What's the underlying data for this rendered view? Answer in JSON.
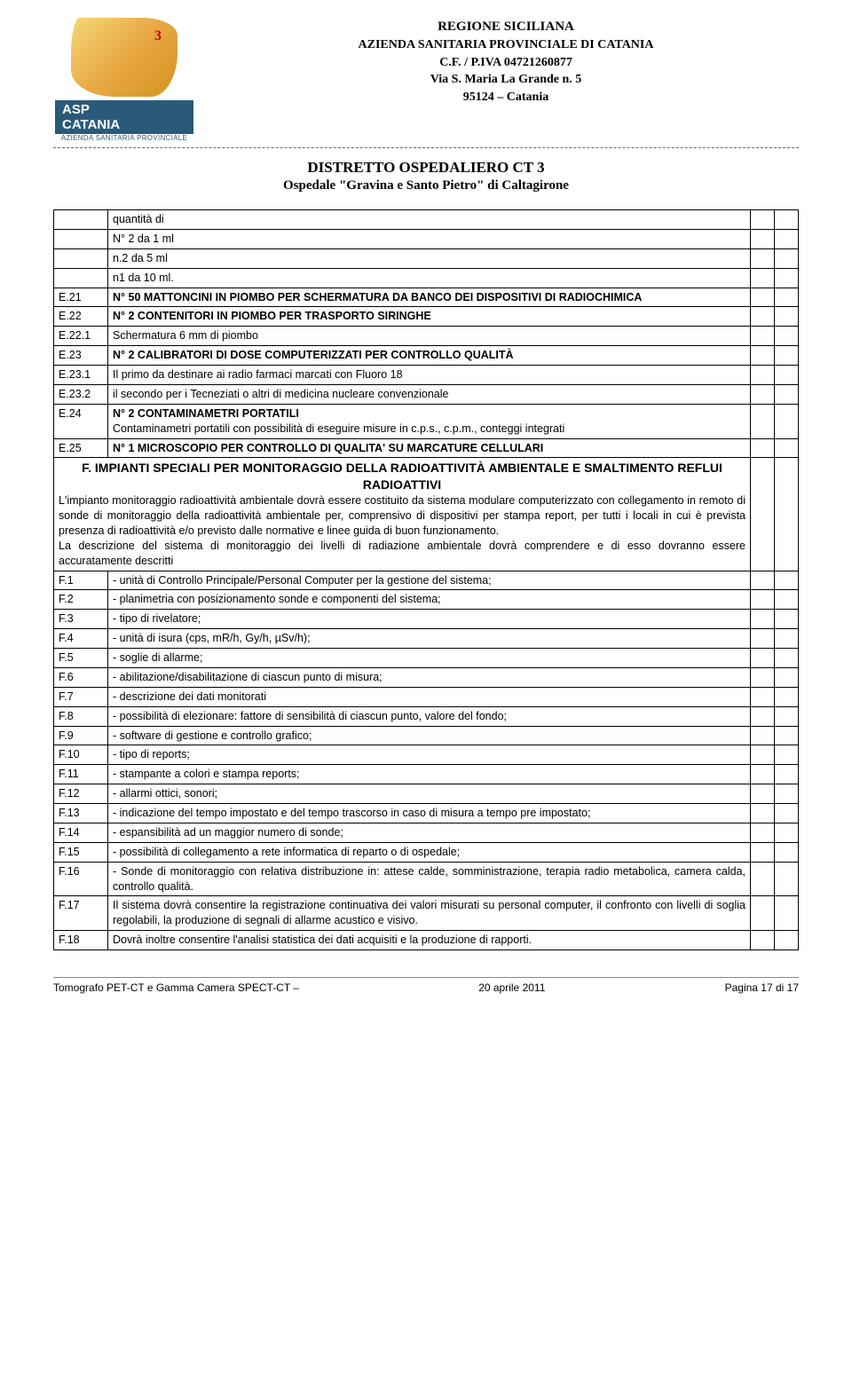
{
  "header": {
    "line1": "REGIONE  SICILIANA",
    "line2": "AZIENDA SANITARIA PROVINCIALE DI CATANIA",
    "line3": "C.F. / P.IVA 04721260877",
    "line4": "Via S. Maria La Grande n. 5",
    "line5": "95124 – Catania",
    "logo_asp": "ASP",
    "logo_city": "CATANIA",
    "logo_sub": "AZIENDA SANITARIA PROVINCIALE"
  },
  "subtitle1": "DISTRETTO OSPEDALIERO CT 3",
  "subtitle2": "Ospedale \"Gravina e Santo Pietro\" di Caltagirone",
  "rows": [
    {
      "code": "",
      "text": "quantità di"
    },
    {
      "code": "",
      "text": "N° 2 da 1 ml"
    },
    {
      "code": "",
      "text": "n.2 da 5 ml"
    },
    {
      "code": "",
      "text": "n1 da 10 ml."
    },
    {
      "code": "E.21",
      "text": "N° 50 MATTONCINI IN PIOMBO PER SCHERMATURA DA BANCO DEI DISPOSITIVI DI RADIOCHIMICA",
      "bold": true
    },
    {
      "code": "E.22",
      "text": "N° 2 CONTENITORI IN PIOMBO PER TRASPORTO SIRINGHE",
      "bold": true
    },
    {
      "code": "E.22.1",
      "text": "Schermatura 6 mm di piombo"
    },
    {
      "code": "E.23",
      "text": "N° 2 CALIBRATORI DI DOSE COMPUTERIZZATI PER CONTROLLO QUALITÀ",
      "bold": true
    },
    {
      "code": "E.23.1",
      "text": "Il primo da destinare ai radio farmaci marcati con Fluoro 18"
    },
    {
      "code": "E.23.2",
      "text": "il secondo per i Tecneziati o altri di medicina nucleare convenzionale"
    }
  ],
  "e24": {
    "code": "E.24",
    "title": "N° 2 CONTAMINAMETRI PORTATILI",
    "body": "Contaminametri portatili con possibilità di eseguire misure in c.p.s., c.p.m., conteggi integrati"
  },
  "e25": {
    "code": "E.25",
    "text": "N° 1 MICROSCOPIO PER CONTROLLO DI QUALITA' SU MARCATURE CELLULARI"
  },
  "sectionF": {
    "title": "F. IMPIANTI SPECIALI PER MONITORAGGIO DELLA RADIOATTIVITÀ AMBIENTALE E SMALTIMENTO REFLUI RADIOATTIVI",
    "para1": "L'impianto monitoraggio radioattività ambientale dovrà essere costituito da sistema modulare computerizzato con collegamento in remoto di sonde di monitoraggio della radioattività ambientale per, comprensivo di dispositivi per stampa report, per tutti i locali in cui è prevista presenza di radioattività e/o previsto dalle normative e linee guida di buon funzionamento.",
    "para2": " La descrizione del sistema di monitoraggio dei livelli di radiazione ambientale dovrà comprendere e di esso dovranno essere accuratamente descritti"
  },
  "frows": [
    {
      "code": "F.1",
      "text": "-   unità di Controllo Principale/Personal Computer per la gestione del sistema;"
    },
    {
      "code": "F.2",
      "text": "-   planimetria con posizionamento sonde e componenti del sistema;"
    },
    {
      "code": "F.3",
      "text": "-   tipo di rivelatore;"
    },
    {
      "code": "F.4",
      "text": "-   unità di isura (cps, mR/h,  Gy/h, µSv/h);"
    },
    {
      "code": "F.5",
      "text": "-   soglie di allarme;"
    },
    {
      "code": "F.6",
      "text": "-   abilitazione/disabilitazione di ciascun punto di misura;"
    },
    {
      "code": "F.7",
      "text": "-   descrizione dei dati  monitorati"
    },
    {
      "code": "F.8",
      "text": "-  possibilità di  elezionare: fattore di sensibilità di ciascun punto, valore  del fondo;"
    },
    {
      "code": "F.9",
      "text": "-   software di gestione e controllo grafico;"
    },
    {
      "code": "F.10",
      "text": "-   tipo di reports;"
    },
    {
      "code": "F.11",
      "text": "-   stampante a colori e stampa reports;"
    },
    {
      "code": "F.12",
      "text": "-   allarmi ottici, sonori;"
    },
    {
      "code": "F.13",
      "text": "-  indicazione del tempo impostato e del tempo trascorso in caso di misura a tempo pre impostato;"
    },
    {
      "code": "F.14",
      "text": "-   espansibilità ad un maggior numero di sonde;"
    },
    {
      "code": "F.15",
      "text": "-   possibilità di collegamento a rete informatica di reparto o di ospedale;"
    },
    {
      "code": "F.16",
      "text": "-  Sonde  di  monitoraggio  con  relativa  distribuzione  in:  attese  calde, somministrazione, terapia radio metabolica, camera calda, controllo qualità."
    },
    {
      "code": "F.17",
      "text": "Il sistema dovrà consentire la registrazione continuativa dei valori misurati su personal computer, il confronto con livelli di soglia regolabili, la produzione di segnali di allarme acustico e visivo."
    },
    {
      "code": "F.18",
      "text": "Dovrà inoltre consentire l'analisi statistica dei dati acquisiti e la produzione di rapporti."
    }
  ],
  "footer": {
    "left": "Tomografo PET-CT e Gamma Camera SPECT-CT –",
    "center": "20 aprile 2011",
    "right": "Pagina 17 di 17"
  }
}
